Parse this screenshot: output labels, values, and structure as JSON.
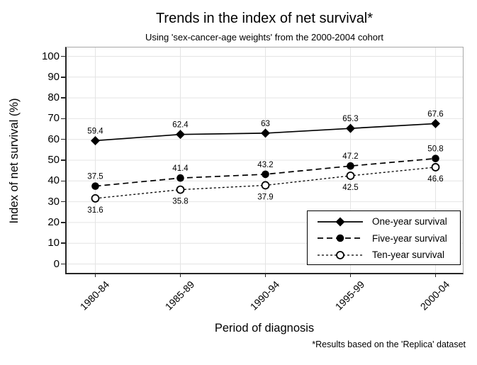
{
  "title": "Trends in the index of net survival*",
  "subtitle": "Using 'sex-cancer-age weights' from the 2000-2004 cohort",
  "xlabel": "Period of diagnosis",
  "ylabel": "Index of net survival (%)",
  "footnote": "*Results based on the 'Replica' dataset",
  "chart_data": {
    "type": "line",
    "categories": [
      "1980-84",
      "1985-89",
      "1990-94",
      "1995-99",
      "2000-04"
    ],
    "series": [
      {
        "name": "One-year survival",
        "values": [
          59.4,
          62.4,
          63,
          65.3,
          67.6
        ],
        "point_labels": [
          "59.4",
          "62.4",
          "63",
          "65.3",
          "67.6"
        ],
        "marker": "filled-diamond",
        "line_style": "solid",
        "label_side": "above"
      },
      {
        "name": "Five-year survival",
        "values": [
          37.5,
          41.4,
          43.2,
          47.2,
          50.8
        ],
        "point_labels": [
          "37.5",
          "41.4",
          "43.2",
          "47.2",
          "50.8"
        ],
        "marker": "filled-circle",
        "line_style": "long-dash",
        "label_side": "above"
      },
      {
        "name": "Ten-year survival",
        "values": [
          31.6,
          35.8,
          37.9,
          42.5,
          46.6
        ],
        "point_labels": [
          "31.6",
          "35.8",
          "37.9",
          "42.5",
          "46.6"
        ],
        "marker": "open-circle",
        "line_style": "short-dash",
        "label_side": "below"
      }
    ],
    "yticks": [
      0,
      10,
      20,
      30,
      40,
      50,
      60,
      70,
      80,
      90,
      100
    ],
    "ylim": [
      0,
      100
    ],
    "grid": true,
    "legend_position": "inside-bottom-right",
    "colors": {
      "series": "#000000",
      "grid": "#e4e4e4",
      "axis": "#262626",
      "plot_border": "#a8a8a8",
      "background": "#ffffff",
      "text": "#000000"
    }
  }
}
